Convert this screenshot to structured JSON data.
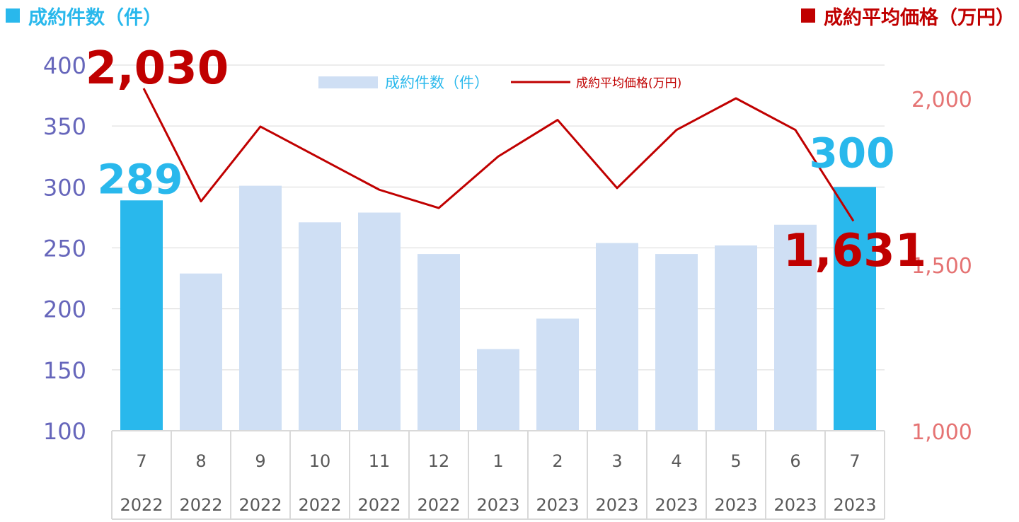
{
  "header": {
    "left_title": "成約件数（件）",
    "right_title": "成約平均価格（万円）"
  },
  "colors": {
    "highlight_bar": "#29B8EC",
    "bar": "#CFDFF4",
    "line": "#C00000",
    "left_axis_text": "#6666BB",
    "right_axis_text": "#E57373",
    "count_label": "#29B8EC",
    "price_label": "#C00000",
    "grid": "#D9D9D9",
    "tick_text": "#595959"
  },
  "chart_data": {
    "type": "bar",
    "categories": [
      {
        "month": "7",
        "year": "2022"
      },
      {
        "month": "8",
        "year": "2022"
      },
      {
        "month": "9",
        "year": "2022"
      },
      {
        "month": "10",
        "year": "2022"
      },
      {
        "month": "11",
        "year": "2022"
      },
      {
        "month": "12",
        "year": "2022"
      },
      {
        "month": "1",
        "year": "2023"
      },
      {
        "month": "2",
        "year": "2023"
      },
      {
        "month": "3",
        "year": "2023"
      },
      {
        "month": "4",
        "year": "2023"
      },
      {
        "month": "5",
        "year": "2023"
      },
      {
        "month": "6",
        "year": "2023"
      },
      {
        "month": "7",
        "year": "2023"
      }
    ],
    "series": [
      {
        "name": "成約件数（件）",
        "type": "bar",
        "axis": "left",
        "values": [
          289,
          229,
          301,
          271,
          279,
          245,
          167,
          192,
          254,
          245,
          252,
          269,
          300
        ],
        "highlight_indices": [
          0,
          12
        ]
      },
      {
        "name": "成約平均価格(万円)",
        "type": "line",
        "axis": "right",
        "values": [
          2030,
          1690,
          1915,
          1820,
          1725,
          1670,
          1825,
          1935,
          1730,
          1905,
          2000,
          1905,
          1631
        ]
      }
    ],
    "y_left": {
      "min": 100,
      "max": 400,
      "ticks": [
        "100",
        "150",
        "200",
        "250",
        "300",
        "350",
        "400"
      ]
    },
    "y_right": {
      "min": 1000,
      "max": 2100,
      "ticks": [
        "1,000",
        "1,500",
        "2,000"
      ]
    },
    "annotations": [
      {
        "text": "289",
        "series": "count",
        "index": 0
      },
      {
        "text": "300",
        "series": "count",
        "index": 12
      },
      {
        "text": "2,030",
        "series": "price",
        "index": 0
      },
      {
        "text": "1,631",
        "series": "price",
        "index": 12
      }
    ],
    "legend": {
      "position": "top-center"
    },
    "grid": true
  }
}
